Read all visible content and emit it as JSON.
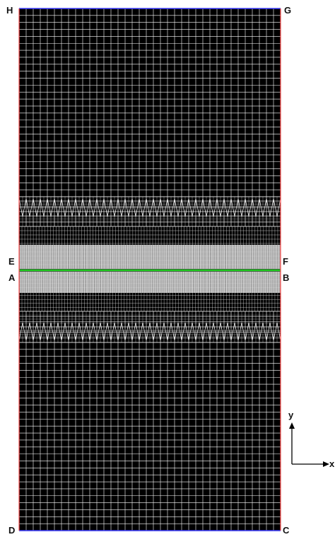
{
  "corner_labels": {
    "h": "H",
    "g": "G",
    "e": "E",
    "f": "F",
    "a": "A",
    "b": "B",
    "d": "D",
    "c": "C"
  },
  "axes": {
    "y_label": "y",
    "x_label": "x"
  },
  "colors": {
    "background": "#000000",
    "mesh": "#ffffff",
    "dense_band": "#bdbdbd",
    "side_boundary": "#ff4d4d",
    "top_bottom_boundary": "#3a3aff",
    "interface": "#22cc22"
  }
}
